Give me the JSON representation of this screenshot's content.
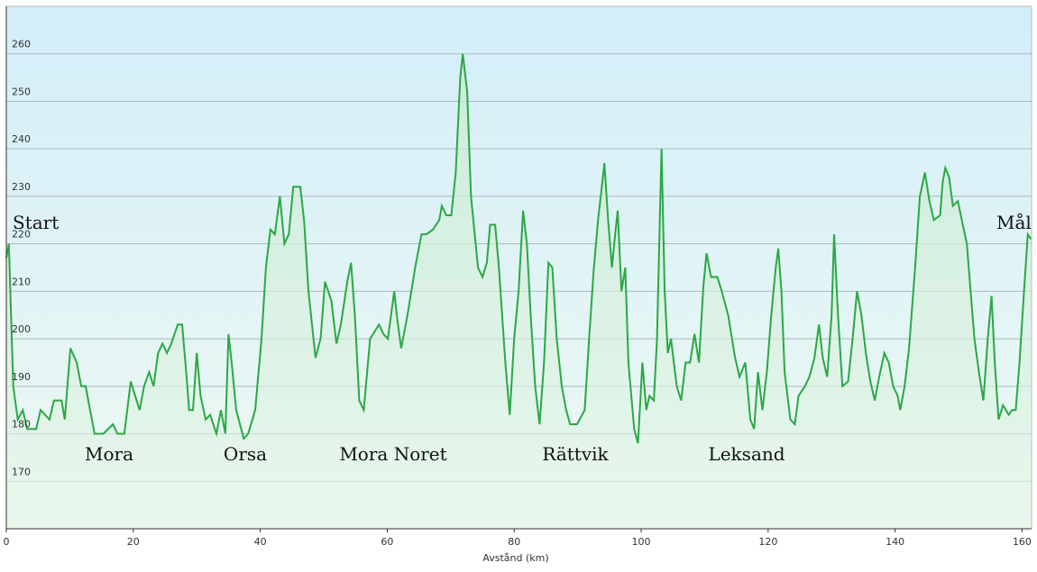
{
  "chart_data": {
    "type": "area",
    "x_label": "Avstånd (km)",
    "places": [
      "Start",
      "Mål",
      "Mora",
      "Orsa",
      "Mora Noret",
      "Rättvik",
      "Leksand"
    ],
    "xlim": [
      0,
      161.5
    ],
    "ylim": [
      160,
      270
    ],
    "xticks": [
      0,
      20,
      40,
      60,
      80,
      100,
      120,
      140,
      160
    ],
    "yticks": [
      170,
      180,
      190,
      200,
      210,
      220,
      230,
      240,
      250,
      260
    ],
    "grid": true,
    "series": [
      {
        "color": "#2aa845",
        "x": [
          0,
          0.4,
          1.1,
          1.8,
          2.6,
          3.3,
          4.7,
          5.4,
          6.8,
          7.5,
          8.7,
          9.2,
          10.1,
          11.1,
          11.8,
          12.5,
          13.2,
          13.9,
          15.3,
          16.8,
          17.5,
          18.6,
          19.6,
          20.3,
          21.0,
          21.7,
          22.5,
          23.2,
          23.9,
          24.6,
          25.3,
          26.0,
          27.0,
          27.7,
          28.4,
          28.8,
          29.4,
          30.0,
          30.6,
          31.4,
          32.1,
          33.1,
          33.8,
          34.5,
          35.0,
          35.5,
          36.2,
          37.4,
          38.1,
          39.2,
          40.2,
          40.9,
          41.6,
          42.3,
          43.1,
          43.8,
          44.5,
          45.2,
          46.3,
          46.9,
          47.6,
          48.7,
          49.5,
          50.2,
          51.2,
          52.0,
          52.7,
          53.7,
          54.3,
          54.9,
          55.6,
          56.3,
          57.3,
          58.7,
          59.4,
          60.1,
          61.1,
          61.5,
          62.2,
          63.2,
          64.4,
          65.4,
          66.2,
          67.2,
          68.2,
          68.6,
          69.3,
          70.1,
          70.8,
          71.5,
          71.9,
          72.6,
          73.2,
          74.3,
          75.0,
          75.7,
          76.2,
          77.0,
          77.6,
          78.6,
          79.3,
          80.0,
          80.7,
          81.4,
          82.0,
          82.6,
          83.3,
          84.0,
          84.7,
          85.4,
          86.0,
          86.7,
          87.5,
          88.2,
          88.8,
          89.9,
          91.1,
          91.8,
          92.5,
          93.2,
          93.8,
          94.2,
          94.8,
          95.4,
          95.9,
          96.3,
          96.9,
          97.5,
          98.0,
          98.9,
          99.5,
          100.2,
          100.8,
          101.3,
          102.0,
          102.5,
          103.2,
          103.7,
          104.2,
          104.7,
          105.6,
          106.3,
          107.0,
          107.7,
          108.4,
          109.1,
          109.8,
          110.3,
          111.0,
          112.0,
          112.7,
          113.7,
          114.8,
          115.5,
          116.4,
          117.2,
          117.8,
          118.4,
          119.1,
          119.8,
          120.5,
          121.2,
          121.6,
          122.1,
          122.6,
          123.5,
          124.2,
          124.8,
          125.8,
          126.5,
          127.3,
          128.0,
          128.6,
          129.3,
          130.0,
          130.4,
          131.0,
          131.7,
          132.6,
          133.3,
          134.0,
          134.7,
          135.4,
          136.1,
          136.8,
          137.5,
          138.3,
          139.0,
          139.7,
          140.4,
          140.8,
          141.5,
          142.2,
          143.2,
          143.9,
          144.7,
          145.4,
          146.1,
          147.1,
          147.5,
          147.9,
          148.5,
          149.1,
          149.9,
          150.5,
          151.3,
          151.9,
          152.5,
          153.2,
          153.9,
          154.6,
          155.2,
          155.7,
          156.3,
          157.0,
          157.9,
          158.4,
          159.0,
          159.6,
          160.3,
          160.9,
          161.4
        ],
        "values": [
          217,
          220,
          190,
          183,
          185,
          181,
          181,
          185,
          183,
          187,
          187,
          183,
          198,
          195,
          190,
          190,
          185,
          180,
          180,
          182,
          180,
          180,
          191,
          188,
          185,
          190,
          193,
          190,
          197,
          199,
          197,
          199,
          203,
          203,
          192,
          185,
          185,
          197,
          188,
          183,
          184,
          180,
          185,
          180,
          201,
          195,
          185,
          179,
          180,
          185,
          200,
          215,
          223,
          222,
          230,
          220,
          222,
          232,
          232,
          225,
          210,
          196,
          200,
          212,
          208,
          199,
          203,
          212,
          216,
          205,
          187,
          185,
          200,
          203,
          201,
          200,
          210,
          205,
          198,
          205,
          215,
          222,
          222,
          223,
          225,
          228,
          226,
          226,
          235,
          255,
          260,
          252,
          230,
          215,
          213,
          216,
          224,
          224,
          215,
          195,
          184,
          200,
          210,
          227,
          220,
          205,
          190,
          182,
          195,
          216,
          215,
          200,
          190,
          185,
          182,
          182,
          185,
          200,
          214,
          225,
          232,
          237,
          225,
          215,
          222,
          227,
          210,
          215,
          195,
          181,
          178,
          195,
          185,
          188,
          187,
          200,
          240,
          210,
          197,
          200,
          190,
          187,
          195,
          195,
          201,
          195,
          211,
          218,
          213,
          213,
          210,
          205,
          196,
          192,
          195,
          183,
          181,
          193,
          185,
          193,
          205,
          215,
          219,
          210,
          193,
          183,
          182,
          188,
          190,
          192,
          196,
          203,
          196,
          192,
          205,
          222,
          205,
          190,
          191,
          200,
          210,
          205,
          197,
          191,
          187,
          192,
          197,
          195,
          190,
          188,
          185,
          190,
          198,
          216,
          230,
          235,
          229,
          225,
          226,
          233,
          236,
          234,
          228,
          229,
          225,
          220,
          210,
          200,
          193,
          187,
          200,
          209,
          195,
          183,
          186,
          184,
          185,
          185,
          195,
          210,
          222,
          221
        ]
      }
    ]
  }
}
